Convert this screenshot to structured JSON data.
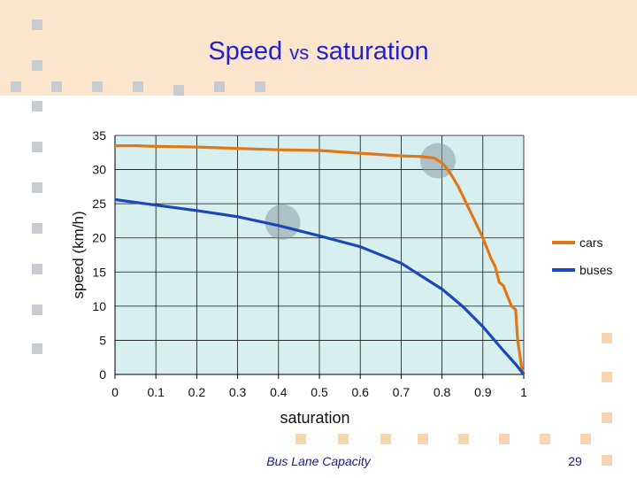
{
  "slide": {
    "title_main": "Speed ",
    "title_vs": "vs",
    "title_end": " saturation",
    "footer": "Bus Lane Capacity",
    "page_number": "29"
  },
  "colors": {
    "header_band": "#fbe5cc",
    "deco_squares": "#c8ccd0",
    "deco_squares_orange": "#f8d4b0",
    "plot_bg": "#d8eff0",
    "cars": "#e07818",
    "buses": "#1a48b8",
    "highlight": "#8a9aa4"
  },
  "chart_data": {
    "type": "line",
    "title": "",
    "xlabel": "saturation",
    "ylabel": "speed (km/h)",
    "xlim": [
      0,
      1
    ],
    "ylim": [
      0,
      35
    ],
    "xticks": [
      0,
      0.1,
      0.2,
      0.3,
      0.4,
      0.5,
      0.6,
      0.7,
      0.8,
      0.9,
      1
    ],
    "xtick_labels": [
      "0",
      "0.1",
      "0.2",
      "0.3",
      "0.4",
      "0.5",
      "0.6",
      "0.7",
      "0.8",
      "0.9",
      "1"
    ],
    "yticks": [
      0,
      5,
      10,
      15,
      20,
      25,
      30,
      35
    ],
    "ytick_labels": [
      "0",
      "5",
      "10",
      "15",
      "20",
      "25",
      "30",
      "35"
    ],
    "grid": true,
    "legend_position": "right",
    "series": [
      {
        "name": "cars",
        "color": "#e07818",
        "x": [
          0,
          0.05,
          0.1,
          0.2,
          0.3,
          0.4,
          0.5,
          0.6,
          0.7,
          0.75,
          0.78,
          0.8,
          0.82,
          0.84,
          0.86,
          0.88,
          0.9,
          0.92,
          0.93,
          0.94,
          0.95,
          0.96,
          0.97,
          0.98,
          0.985,
          0.99,
          0.995,
          1.0
        ],
        "y": [
          33.5,
          33.5,
          33.4,
          33.3,
          33.1,
          32.9,
          32.8,
          32.4,
          32.0,
          31.9,
          31.7,
          31.0,
          29.5,
          27.5,
          25.0,
          22.5,
          20.0,
          17.0,
          15.8,
          13.5,
          13.0,
          11.5,
          10.0,
          9.5,
          5.0,
          3.0,
          1.0,
          0.0
        ]
      },
      {
        "name": "buses",
        "color": "#1a48b8",
        "x": [
          0,
          0.1,
          0.2,
          0.3,
          0.4,
          0.5,
          0.6,
          0.7,
          0.8,
          0.85,
          0.9,
          0.95,
          0.98,
          1.0
        ],
        "y": [
          25.6,
          24.8,
          24.0,
          23.1,
          21.8,
          20.3,
          18.7,
          16.3,
          12.5,
          10.0,
          7.0,
          3.5,
          1.5,
          0.0
        ]
      }
    ],
    "highlights": [
      {
        "x": 0.41,
        "y": 22.3
      },
      {
        "x": 0.79,
        "y": 31.3
      }
    ]
  }
}
